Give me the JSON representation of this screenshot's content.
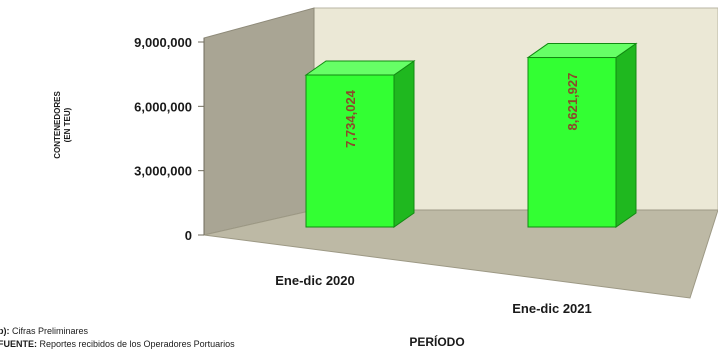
{
  "chart_data": {
    "type": "bar",
    "categories": [
      "Ene-dic 2020",
      "Ene-dic 2021"
    ],
    "values": [
      7734024,
      8621927
    ],
    "data_labels": [
      "7,734,024",
      "8,621,927"
    ],
    "title": "",
    "xlabel": "PERÍODO",
    "ylabel_line1": "CONTENEDORES",
    "ylabel_line2": "(EN TEU)",
    "ylim": [
      0,
      9000000
    ],
    "yticks": [
      0,
      3000000,
      6000000,
      9000000
    ],
    "ytick_labels": [
      "0",
      "3,000,000",
      "6,000,000",
      "9,000,000"
    ],
    "style": "3d-column",
    "grid": false,
    "bar_color": "#33ff33",
    "bar_side_color": "#1fb81f",
    "bar_top_color": "#66ff66",
    "label_color": "#8b4a2b",
    "wall_color": "#ebe8d6",
    "side_wall_color": "#a9a594",
    "floor_color": "#bdb9a5"
  },
  "notes": {
    "prelim_key": "p):",
    "prelim_text": " Cifras Preliminares",
    "source_key": "FUENTE:",
    "source_text": " Reportes recibidos de los Operadores Portuarios"
  }
}
